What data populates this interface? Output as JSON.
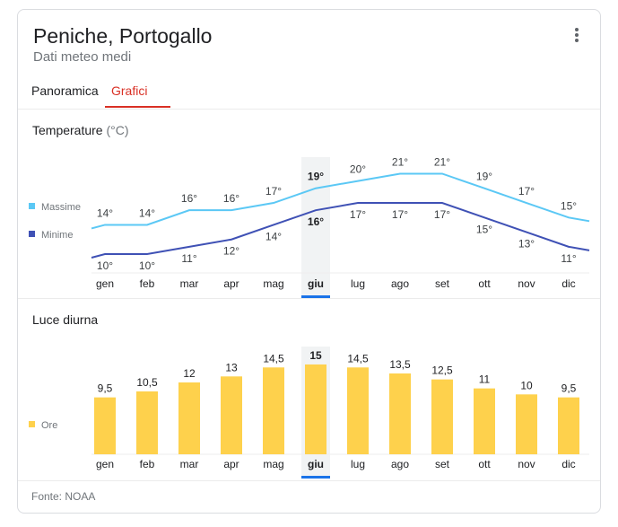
{
  "header": {
    "title": "Peniche, Portogallo",
    "subtitle": "Dati meteo medi"
  },
  "tabs": [
    {
      "label": "Panoramica",
      "active": false
    },
    {
      "label": "Grafici",
      "active": true
    }
  ],
  "colors": {
    "max": "#5bc8f5",
    "min": "#3f51b5",
    "bar": "#fed14c",
    "tab_active": "#d93025",
    "highlight_underline": "#1a73e8"
  },
  "temperature": {
    "title": "Temperature",
    "unit": "(°C)",
    "legend": [
      "Massime",
      "Minime"
    ]
  },
  "daylight": {
    "title": "Luce diurna",
    "legend": "Ore"
  },
  "footer": "Fonte: NOAA",
  "chart_data": [
    {
      "type": "line",
      "title": "Temperature (°C)",
      "categories": [
        "gen",
        "feb",
        "mar",
        "apr",
        "mag",
        "giu",
        "lug",
        "ago",
        "set",
        "ott",
        "nov",
        "dic"
      ],
      "highlighted": "giu",
      "series": [
        {
          "name": "Massime",
          "values": [
            14,
            14,
            16,
            16,
            17,
            19,
            20,
            21,
            21,
            19,
            17,
            15
          ]
        },
        {
          "name": "Minime",
          "values": [
            10,
            10,
            11,
            12,
            14,
            16,
            17,
            17,
            17,
            15,
            13,
            11
          ]
        }
      ]
    },
    {
      "type": "bar",
      "title": "Luce diurna",
      "categories": [
        "gen",
        "feb",
        "mar",
        "apr",
        "mag",
        "giu",
        "lug",
        "ago",
        "set",
        "ott",
        "nov",
        "dic"
      ],
      "highlighted": "giu",
      "series": [
        {
          "name": "Ore",
          "values": [
            "9,5",
            "10,5",
            "12",
            "13",
            "14,5",
            "15",
            "14,5",
            "13,5",
            "12,5",
            "11",
            "10",
            "9,5"
          ]
        }
      ]
    }
  ]
}
